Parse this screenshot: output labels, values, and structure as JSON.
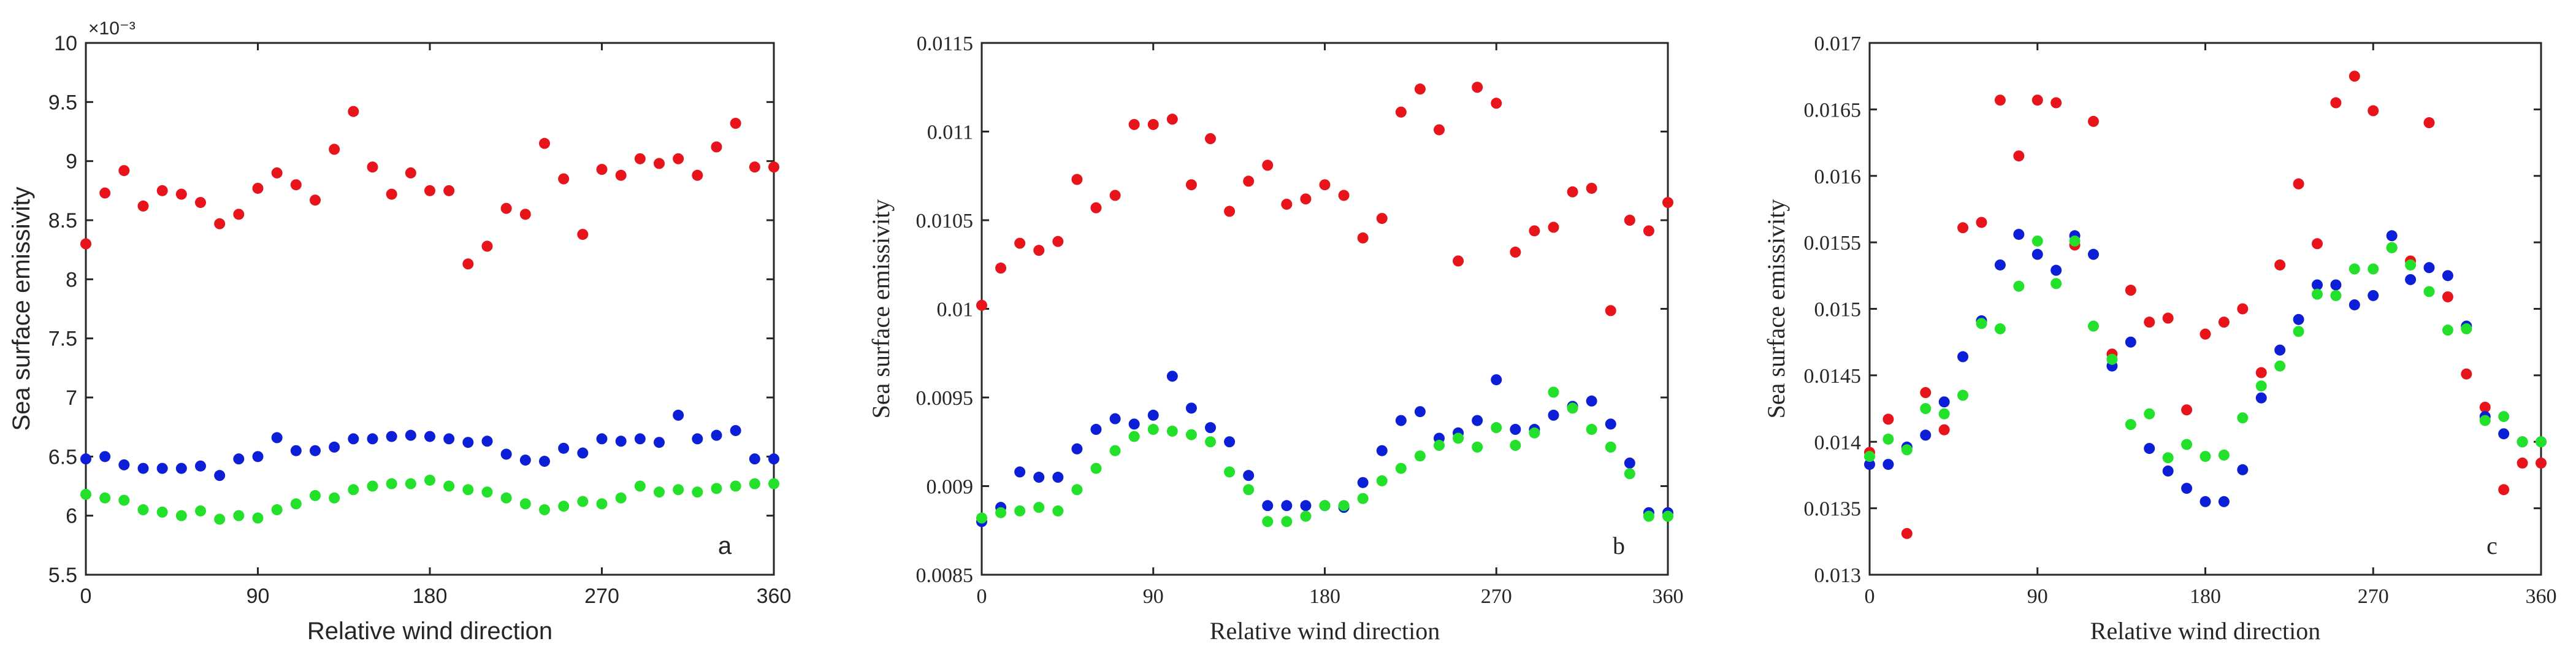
{
  "chart_data": [
    {
      "panel": "a",
      "type": "scatter",
      "title": "",
      "xlabel": "Relative wind direction",
      "ylabel": "Sea surface emissivity",
      "exponent_label": "×10⁻³",
      "xlim": [
        0,
        360
      ],
      "ylim": [
        5.5,
        10
      ],
      "xticks": [
        0,
        90,
        180,
        270,
        360
      ],
      "yticks": [
        5.5,
        6,
        6.5,
        7,
        7.5,
        8,
        8.5,
        9,
        9.5,
        10
      ],
      "ytick_labels": [
        "5.5",
        "6",
        "6.5",
        "7",
        "7.5",
        "8",
        "8.5",
        "9",
        "9.5",
        "10"
      ],
      "x": [
        0,
        10,
        20,
        30,
        40,
        50,
        60,
        70,
        80,
        90,
        100,
        110,
        120,
        130,
        140,
        150,
        160,
        170,
        180,
        190,
        200,
        210,
        220,
        230,
        240,
        250,
        260,
        270,
        280,
        290,
        300,
        310,
        320,
        330,
        340,
        350,
        360
      ],
      "series": [
        {
          "name": "red",
          "color": "#e8141b",
          "values": [
            8.3,
            8.73,
            8.92,
            8.62,
            8.75,
            8.72,
            8.65,
            8.47,
            8.55,
            8.77,
            8.9,
            8.8,
            8.67,
            9.1,
            9.42,
            8.95,
            8.72,
            8.9,
            8.75,
            8.75,
            8.13,
            8.28,
            8.6,
            8.55,
            9.15,
            8.85,
            8.38,
            8.93,
            8.88,
            9.02,
            8.98,
            9.02,
            8.88,
            9.12,
            9.32,
            8.95,
            8.95
          ]
        },
        {
          "name": "blue",
          "color": "#0c1fd6",
          "values": [
            6.48,
            6.5,
            6.43,
            6.4,
            6.4,
            6.4,
            6.42,
            6.34,
            6.48,
            6.5,
            6.66,
            6.55,
            6.55,
            6.58,
            6.65,
            6.65,
            6.67,
            6.68,
            6.67,
            6.65,
            6.62,
            6.63,
            6.52,
            6.47,
            6.46,
            6.57,
            6.53,
            6.65,
            6.63,
            6.65,
            6.62,
            6.85,
            6.65,
            6.68,
            6.72,
            6.48,
            6.48
          ]
        },
        {
          "name": "green",
          "color": "#23e02a",
          "values": [
            6.18,
            6.15,
            6.13,
            6.05,
            6.03,
            6.0,
            6.04,
            5.97,
            6.0,
            5.98,
            6.05,
            6.1,
            6.17,
            6.15,
            6.22,
            6.25,
            6.27,
            6.27,
            6.3,
            6.25,
            6.22,
            6.2,
            6.15,
            6.1,
            6.05,
            6.08,
            6.12,
            6.1,
            6.15,
            6.25,
            6.2,
            6.22,
            6.2,
            6.23,
            6.25,
            6.27,
            6.27
          ]
        }
      ],
      "annotation": "a"
    },
    {
      "panel": "b",
      "type": "scatter",
      "title": "",
      "xlabel": "Relative wind direction",
      "ylabel": "Sea surface emissivity",
      "xlim": [
        0,
        360
      ],
      "ylim": [
        0.0085,
        0.0115
      ],
      "xticks": [
        0,
        90,
        180,
        270,
        360
      ],
      "yticks": [
        0.0085,
        0.009,
        0.0095,
        0.01,
        0.0105,
        0.011,
        0.0115
      ],
      "ytick_labels": [
        "0.0085",
        "0.009",
        "0.0095",
        "0.01",
        "0.0105",
        "0.011",
        "0.0115"
      ],
      "x": [
        0,
        10,
        20,
        30,
        40,
        50,
        60,
        70,
        80,
        90,
        100,
        110,
        120,
        130,
        140,
        150,
        160,
        170,
        180,
        190,
        200,
        210,
        220,
        230,
        240,
        250,
        260,
        270,
        280,
        290,
        300,
        310,
        320,
        330,
        340,
        350,
        360
      ],
      "series": [
        {
          "name": "red",
          "color": "#e8141b",
          "values": [
            0.01002,
            0.01023,
            0.01037,
            0.01033,
            0.01038,
            0.01073,
            0.01057,
            0.01064,
            0.01104,
            0.01104,
            0.01107,
            0.0107,
            0.01096,
            0.01055,
            0.01072,
            0.01081,
            0.01059,
            0.01062,
            0.0107,
            0.01064,
            0.0104,
            0.01051,
            0.01111,
            0.01124,
            0.01101,
            0.01027,
            0.01125,
            0.01116,
            0.01032,
            0.01044,
            0.01046,
            0.01066,
            0.01068,
            0.00999,
            0.0105,
            0.01044,
            0.0106
          ]
        },
        {
          "name": "blue",
          "color": "#0c1fd6",
          "values": [
            0.0088,
            0.00888,
            0.00908,
            0.00905,
            0.00905,
            0.00921,
            0.00932,
            0.00938,
            0.00935,
            0.0094,
            0.00962,
            0.00944,
            0.00933,
            0.00925,
            0.00906,
            0.00889,
            0.00889,
            0.00889,
            0.00889,
            0.00888,
            0.00902,
            0.0092,
            0.00937,
            0.00942,
            0.00927,
            0.0093,
            0.00937,
            0.0096,
            0.00932,
            0.00932,
            0.0094,
            0.00945,
            0.00948,
            0.00935,
            0.00913,
            0.00885,
            0.00885
          ]
        },
        {
          "name": "green",
          "color": "#23e02a",
          "values": [
            0.00882,
            0.00885,
            0.00886,
            0.00888,
            0.00886,
            0.00898,
            0.0091,
            0.0092,
            0.00928,
            0.00932,
            0.00931,
            0.00929,
            0.00925,
            0.00908,
            0.00898,
            0.0088,
            0.0088,
            0.00883,
            0.00889,
            0.00889,
            0.00893,
            0.00903,
            0.0091,
            0.00917,
            0.00923,
            0.00927,
            0.00922,
            0.00933,
            0.00923,
            0.0093,
            0.00953,
            0.00944,
            0.00932,
            0.00922,
            0.00907,
            0.00883,
            0.00883
          ]
        }
      ],
      "annotation": "b"
    },
    {
      "panel": "c",
      "type": "scatter",
      "title": "",
      "xlabel": "Relative wind direction",
      "ylabel": "Sea surface emissivity",
      "xlim": [
        0,
        360
      ],
      "ylim": [
        0.013,
        0.017
      ],
      "xticks": [
        0,
        90,
        180,
        270,
        360
      ],
      "yticks": [
        0.013,
        0.0135,
        0.014,
        0.0145,
        0.015,
        0.0155,
        0.016,
        0.0165,
        0.017
      ],
      "ytick_labels": [
        "0.013",
        "0.0135",
        "0.014",
        "0.0145",
        "0.015",
        "0.0155",
        "0.016",
        "0.0165",
        "0.017"
      ],
      "x": [
        0,
        10,
        20,
        30,
        40,
        50,
        60,
        70,
        80,
        90,
        100,
        110,
        120,
        130,
        140,
        150,
        160,
        170,
        180,
        190,
        200,
        210,
        220,
        230,
        240,
        250,
        260,
        270,
        280,
        290,
        300,
        310,
        320,
        330,
        340,
        350,
        360
      ],
      "series": [
        {
          "name": "red",
          "color": "#e8141b",
          "values": [
            0.01392,
            0.01417,
            0.01331,
            0.01437,
            0.01409,
            0.01561,
            0.01565,
            0.01657,
            0.01615,
            0.01657,
            0.01655,
            0.01548,
            0.01641,
            0.01466,
            0.01514,
            0.0149,
            0.01493,
            0.01424,
            0.01481,
            0.0149,
            0.015,
            0.01452,
            0.01533,
            0.01594,
            0.01549,
            0.01655,
            0.01675,
            0.01649,
            0.01546,
            0.01536,
            0.0164,
            0.01509,
            0.01451,
            0.01426,
            0.01364,
            0.01384,
            0.01384
          ]
        },
        {
          "name": "blue",
          "color": "#0c1fd6",
          "values": [
            0.01383,
            0.01383,
            0.01396,
            0.01405,
            0.0143,
            0.01464,
            0.01491,
            0.01533,
            0.01556,
            0.01541,
            0.01529,
            0.01555,
            0.01541,
            0.01457,
            0.01475,
            0.01395,
            0.01378,
            0.01365,
            0.01355,
            0.01355,
            0.01379,
            0.01433,
            0.01469,
            0.01492,
            0.01518,
            0.01518,
            0.01503,
            0.0151,
            0.01555,
            0.01522,
            0.01531,
            0.01525,
            0.01487,
            0.01419,
            0.01406,
            0.014,
            0.014
          ]
        },
        {
          "name": "green",
          "color": "#23e02a",
          "values": [
            0.01389,
            0.01402,
            0.01394,
            0.01425,
            0.01421,
            0.01435,
            0.01489,
            0.01485,
            0.01517,
            0.01551,
            0.01519,
            0.01551,
            0.01487,
            0.01462,
            0.01413,
            0.01421,
            0.01388,
            0.01398,
            0.01389,
            0.0139,
            0.01418,
            0.01442,
            0.01457,
            0.01483,
            0.01511,
            0.0151,
            0.0153,
            0.0153,
            0.01546,
            0.01533,
            0.01513,
            0.01484,
            0.01485,
            0.01416,
            0.01419,
            0.014,
            0.014
          ]
        }
      ],
      "annotation": "c"
    }
  ]
}
